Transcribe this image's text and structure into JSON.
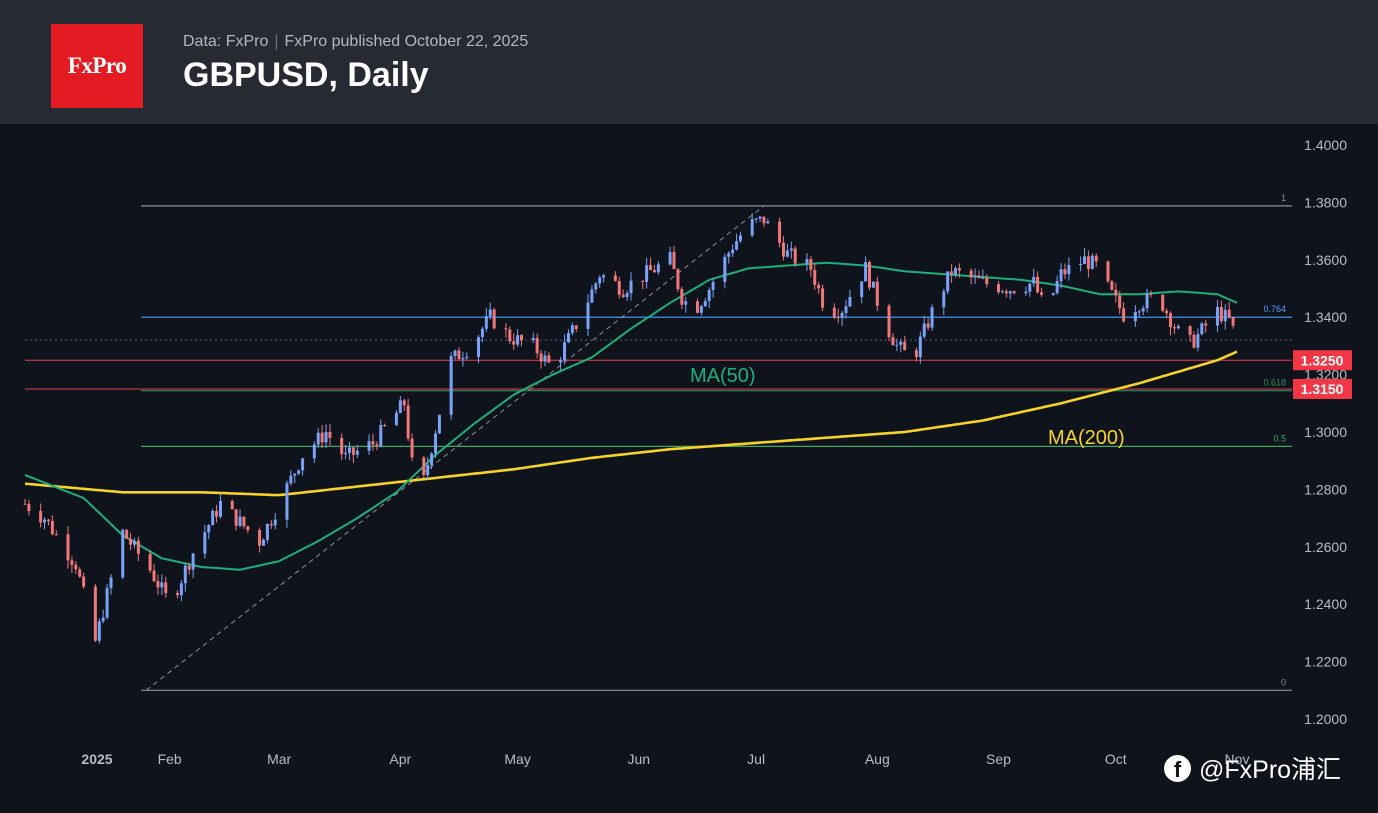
{
  "header": {
    "logo_text": "FxPro",
    "source": "Data: FxPro",
    "published": "FxPro published October 22, 2025",
    "title": "GBPUSD, Daily"
  },
  "watermark": {
    "icon": "facebook-icon",
    "text": "@FxPro浦汇"
  },
  "colors": {
    "background": "#0f131c",
    "header_bg": "#262a33",
    "logo_red": "#e31b23",
    "candle_up": "#7aa2f7",
    "candle_down": "#f07878",
    "ma50": "#1db07a",
    "ma200": "#f5d32a",
    "fib_line": "#8a8f99",
    "fib_0764": "#4aa3ff",
    "fib_0618": "#2f8f5a",
    "fib_05": "#3aa860",
    "support_line": "#e0424e",
    "price_tag": "#f23645"
  },
  "chart_data": {
    "type": "candlestick",
    "title": "GBPUSD, Daily",
    "ylim": [
      1.2,
      1.4
    ],
    "y_ticks": [
      "1.4000",
      "1.3800",
      "1.3600",
      "1.3400",
      "1.3200",
      "1.3000",
      "1.2800",
      "1.2600",
      "1.2400",
      "1.2200",
      "1.2000"
    ],
    "x_ticks": [
      {
        "label": "2025",
        "day": 1
      },
      {
        "label": "Feb",
        "day": 32
      },
      {
        "label": "Mar",
        "day": 60
      },
      {
        "label": "Apr",
        "day": 91
      },
      {
        "label": "May",
        "day": 121
      },
      {
        "label": "Jun",
        "day": 152
      },
      {
        "label": "Jul",
        "day": 182
      },
      {
        "label": "Aug",
        "day": 213
      },
      {
        "label": "Sep",
        "day": 244
      },
      {
        "label": "Oct",
        "day": 274
      },
      {
        "label": "Nov",
        "day": 305
      }
    ],
    "x_range_days": [
      -5,
      300
    ],
    "ohlc_key_points": [
      [
        -5,
        1.275
      ],
      [
        0,
        1.27
      ],
      [
        8,
        1.254
      ],
      [
        13,
        1.227
      ],
      [
        20,
        1.265
      ],
      [
        27,
        1.252
      ],
      [
        32,
        1.24
      ],
      [
        38,
        1.258
      ],
      [
        45,
        1.275
      ],
      [
        55,
        1.262
      ],
      [
        60,
        1.275
      ],
      [
        66,
        1.292
      ],
      [
        72,
        1.3
      ],
      [
        77,
        1.291
      ],
      [
        84,
        1.296
      ],
      [
        92,
        1.31
      ],
      [
        95,
        1.278
      ],
      [
        97,
        1.283
      ],
      [
        104,
        1.325
      ],
      [
        109,
        1.33
      ],
      [
        114,
        1.34
      ],
      [
        119,
        1.333
      ],
      [
        125,
        1.33
      ],
      [
        130,
        1.322
      ],
      [
        137,
        1.34
      ],
      [
        142,
        1.355
      ],
      [
        148,
        1.35
      ],
      [
        155,
        1.356
      ],
      [
        160,
        1.36
      ],
      [
        163,
        1.347
      ],
      [
        166,
        1.342
      ],
      [
        170,
        1.35
      ],
      [
        176,
        1.365
      ],
      [
        180,
        1.372
      ],
      [
        184,
        1.374
      ],
      [
        190,
        1.362
      ],
      [
        196,
        1.357
      ],
      [
        200,
        1.342
      ],
      [
        204,
        1.343
      ],
      [
        210,
        1.357
      ],
      [
        215,
        1.338
      ],
      [
        218,
        1.33
      ],
      [
        222,
        1.325
      ],
      [
        228,
        1.345
      ],
      [
        232,
        1.356
      ],
      [
        240,
        1.352
      ],
      [
        247,
        1.35
      ],
      [
        253,
        1.352
      ],
      [
        256,
        1.342
      ],
      [
        260,
        1.355
      ],
      [
        266,
        1.36
      ],
      [
        270,
        1.357
      ],
      [
        272,
        1.35
      ],
      [
        276,
        1.341
      ],
      [
        280,
        1.345
      ],
      [
        285,
        1.347
      ],
      [
        289,
        1.337
      ],
      [
        292,
        1.33
      ],
      [
        294,
        1.332
      ],
      [
        297,
        1.337
      ],
      [
        299,
        1.343
      ],
      [
        303,
        1.339
      ],
      [
        305,
        1.332
      ]
    ],
    "ma50_key_points": [
      [
        -5,
        1.285
      ],
      [
        10,
        1.277
      ],
      [
        20,
        1.264
      ],
      [
        30,
        1.256
      ],
      [
        40,
        1.253
      ],
      [
        50,
        1.252
      ],
      [
        60,
        1.255
      ],
      [
        70,
        1.262
      ],
      [
        80,
        1.27
      ],
      [
        90,
        1.279
      ],
      [
        100,
        1.292
      ],
      [
        110,
        1.303
      ],
      [
        120,
        1.313
      ],
      [
        130,
        1.32
      ],
      [
        140,
        1.326
      ],
      [
        150,
        1.336
      ],
      [
        160,
        1.345
      ],
      [
        170,
        1.353
      ],
      [
        180,
        1.357
      ],
      [
        190,
        1.358
      ],
      [
        200,
        1.359
      ],
      [
        210,
        1.358
      ],
      [
        220,
        1.356
      ],
      [
        230,
        1.355
      ],
      [
        240,
        1.354
      ],
      [
        250,
        1.353
      ],
      [
        260,
        1.351
      ],
      [
        270,
        1.348
      ],
      [
        280,
        1.348
      ],
      [
        290,
        1.349
      ],
      [
        300,
        1.348
      ],
      [
        305,
        1.345
      ]
    ],
    "ma200_key_points": [
      [
        -5,
        1.282
      ],
      [
        20,
        1.279
      ],
      [
        40,
        1.279
      ],
      [
        60,
        1.278
      ],
      [
        80,
        1.281
      ],
      [
        100,
        1.284
      ],
      [
        120,
        1.287
      ],
      [
        140,
        1.291
      ],
      [
        160,
        1.294
      ],
      [
        180,
        1.296
      ],
      [
        200,
        1.298
      ],
      [
        220,
        1.3
      ],
      [
        240,
        1.304
      ],
      [
        260,
        1.31
      ],
      [
        280,
        1.317
      ],
      [
        300,
        1.325
      ],
      [
        305,
        1.328
      ]
    ],
    "fibonacci": {
      "levels": [
        {
          "label": "1",
          "price": 1.3788
        },
        {
          "label": "0.764",
          "price": 1.34
        },
        {
          "label": "0.618",
          "price": 1.3144
        },
        {
          "label": "0.5",
          "price": 1.295
        },
        {
          "label": "0",
          "price": 1.21
        }
      ],
      "trend_start": {
        "day": 26,
        "price": 1.21
      },
      "trend_end": {
        "day": 184,
        "price": 1.3788
      }
    },
    "horizontal_levels": [
      {
        "label": "1.3250",
        "price": 1.325
      },
      {
        "label": "1.3150",
        "price": 1.315
      }
    ],
    "current_price": 1.332,
    "annotations": [
      {
        "text": "MA(50)",
        "color": "ma50"
      },
      {
        "text": "MA(200)",
        "color": "ma200"
      }
    ]
  }
}
